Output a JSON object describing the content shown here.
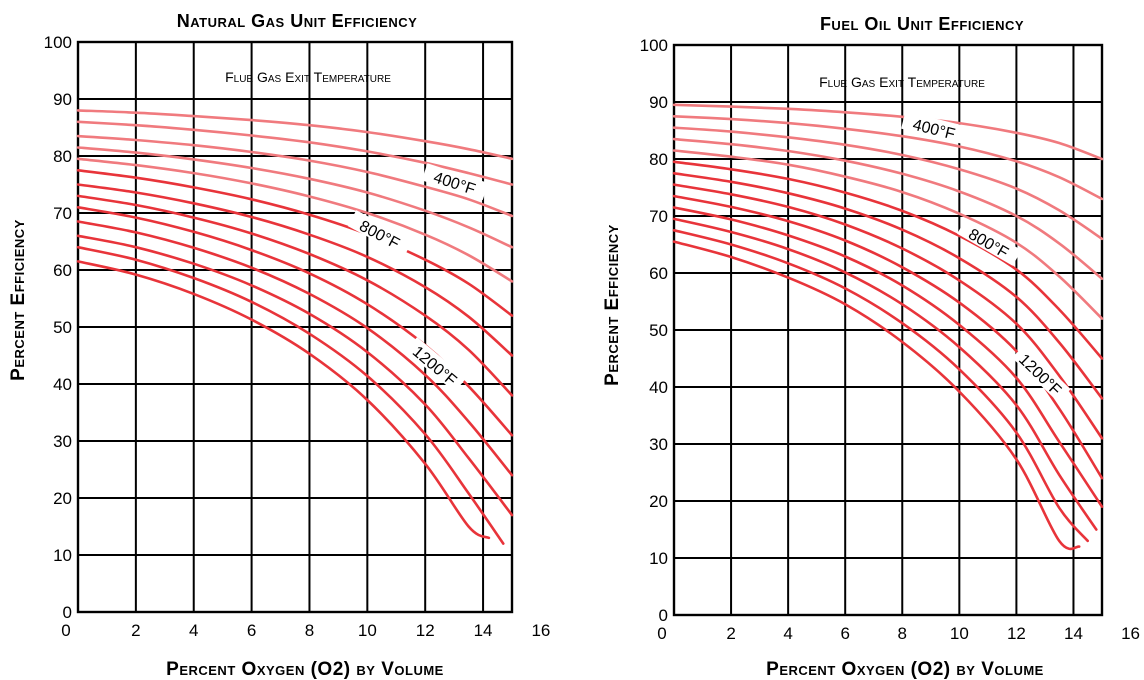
{
  "chart_data": [
    {
      "type": "line",
      "title": "Natural Gas Unit Efficiency",
      "subtitle": "Flue Gas Exit Temperature",
      "xlabel": "Percent Oxygen (O2) by Volume",
      "ylabel": "Percent Efficiency",
      "xlim": [
        0,
        15
      ],
      "ylim": [
        0,
        100
      ],
      "x_ticks": [
        0,
        2,
        4,
        6,
        8,
        10,
        12,
        14,
        16
      ],
      "y_ticks": [
        0,
        10,
        20,
        30,
        40,
        50,
        60,
        70,
        80,
        90,
        100
      ],
      "grid": true,
      "annotations": [
        {
          "text": "400°F",
          "x": 13,
          "y": 75
        },
        {
          "text": "800°F",
          "x": 10.4,
          "y": 66
        },
        {
          "text": "1200°F",
          "x": 12.3,
          "y": 43
        }
      ],
      "series": [
        {
          "x": [
            0,
            2,
            4,
            6,
            8,
            10,
            12,
            13.5,
            15
          ],
          "values": [
            88,
            87.6,
            87,
            86.3,
            85.4,
            84.2,
            82.6,
            81.2,
            79.5
          ]
        },
        {
          "x": [
            0,
            2,
            4,
            6,
            8,
            10,
            12,
            13.5,
            15
          ],
          "values": [
            86,
            85.4,
            84.6,
            83.6,
            82.4,
            80.8,
            78.8,
            77,
            75
          ]
        },
        {
          "x": [
            0,
            2,
            4,
            6,
            8,
            10,
            12,
            13.5,
            15
          ],
          "values": [
            83.5,
            82.8,
            81.9,
            80.7,
            79.2,
            77.2,
            74.6,
            72.4,
            69.5
          ]
        },
        {
          "x": [
            0,
            2,
            4,
            6,
            8,
            10,
            12,
            13.5,
            15
          ],
          "values": [
            81.5,
            80.6,
            79.4,
            77.9,
            76,
            73.6,
            70.4,
            67.5,
            64
          ]
        },
        {
          "x": [
            0,
            2,
            4,
            6,
            8,
            10,
            12,
            13.5,
            15
          ],
          "values": [
            79.5,
            78.4,
            77,
            75.2,
            72.9,
            70,
            66.2,
            62.6,
            58
          ]
        },
        {
          "x": [
            0,
            2,
            4,
            6,
            8,
            10,
            12,
            13.5,
            15
          ],
          "values": [
            77.5,
            76.2,
            74.5,
            72.4,
            69.7,
            66.3,
            61.8,
            57.6,
            52
          ]
        },
        {
          "x": [
            0,
            2,
            4,
            6,
            8,
            10,
            12,
            13.5,
            15
          ],
          "values": [
            75,
            73.6,
            71.7,
            69.3,
            66.2,
            62.3,
            57,
            51.8,
            45
          ]
        },
        {
          "x": [
            0,
            2,
            4,
            6,
            8,
            10,
            12,
            13.5,
            15
          ],
          "values": [
            73,
            71.4,
            69.2,
            66.4,
            62.8,
            58.2,
            52,
            46,
            38
          ]
        },
        {
          "x": [
            0,
            2,
            4,
            6,
            8,
            10,
            12,
            13.5,
            15
          ],
          "values": [
            71,
            69.2,
            66.7,
            63.5,
            59.4,
            54,
            46.8,
            39.6,
            31
          ]
        },
        {
          "x": [
            0,
            2,
            4,
            6,
            8,
            10,
            12,
            13.5,
            15
          ],
          "values": [
            68.5,
            66.6,
            63.9,
            60.4,
            55.8,
            49.8,
            41.6,
            33.4,
            24
          ]
        },
        {
          "x": [
            0,
            2,
            4,
            6,
            8,
            10,
            12,
            13.5,
            15
          ],
          "values": [
            66,
            64,
            61.1,
            57.3,
            52.3,
            45.6,
            36.4,
            27,
            17
          ]
        },
        {
          "x": [
            0,
            2,
            4,
            6,
            8,
            10,
            12,
            13.5,
            14.7
          ],
          "values": [
            64,
            61.8,
            58.6,
            54.4,
            48.8,
            41.4,
            31.2,
            20.8,
            12
          ]
        },
        {
          "x": [
            0,
            2,
            4,
            6,
            8,
            10,
            12,
            13.5,
            14.2
          ],
          "values": [
            61.5,
            59.2,
            55.8,
            51.3,
            45.3,
            37.2,
            26,
            15,
            13
          ]
        }
      ]
    },
    {
      "type": "line",
      "title": "Fuel Oil Unit Efficiency",
      "subtitle": "Flue Gas Exit Temperature",
      "xlabel": "Percent Oxygen (O2) by Volume",
      "ylabel": "Percent Efficiency",
      "xlim": [
        0,
        15
      ],
      "ylim": [
        0,
        100
      ],
      "x_ticks": [
        0,
        2,
        4,
        6,
        8,
        10,
        12,
        14,
        16
      ],
      "y_ticks": [
        0,
        10,
        20,
        30,
        40,
        50,
        60,
        70,
        80,
        90,
        100
      ],
      "grid": true,
      "annotations": [
        {
          "text": "400°F",
          "x": 9.1,
          "y": 85
        },
        {
          "text": "800°F",
          "x": 11,
          "y": 65
        },
        {
          "text": "1200°F",
          "x": 12.8,
          "y": 42
        }
      ],
      "series": [
        {
          "x": [
            0,
            2,
            4,
            6,
            8,
            10,
            12,
            13.5,
            15
          ],
          "values": [
            89.5,
            89.2,
            88.8,
            88.2,
            87.4,
            86.3,
            84.6,
            82.8,
            80
          ]
        },
        {
          "x": [
            0,
            2,
            4,
            6,
            8,
            10,
            12,
            13.5,
            15
          ],
          "values": [
            87.5,
            87,
            86.3,
            85.3,
            84,
            82.2,
            79.6,
            76.8,
            73
          ]
        },
        {
          "x": [
            0,
            2,
            4,
            6,
            8,
            10,
            12,
            13.5,
            15
          ],
          "values": [
            85.5,
            84.8,
            83.8,
            82.5,
            80.7,
            78.2,
            74.8,
            71,
            66
          ]
        },
        {
          "x": [
            0,
            2,
            4,
            6,
            8,
            10,
            12,
            13.5,
            15
          ],
          "values": [
            83.5,
            82.6,
            81.4,
            79.7,
            77.4,
            74.3,
            70,
            65.2,
            59
          ]
        },
        {
          "x": [
            0,
            2,
            4,
            6,
            8,
            10,
            12,
            13.5,
            15
          ],
          "values": [
            81.5,
            80.4,
            79,
            76.9,
            74.2,
            70.4,
            65.3,
            59.4,
            52
          ]
        },
        {
          "x": [
            0,
            2,
            4,
            6,
            8,
            10,
            12,
            13.5,
            15
          ],
          "values": [
            79.5,
            78.2,
            76.5,
            74.1,
            70.9,
            66.5,
            60.6,
            53.6,
            45
          ]
        },
        {
          "x": [
            0,
            2,
            4,
            6,
            8,
            10,
            12,
            13.5,
            15
          ],
          "values": [
            77.5,
            76,
            74,
            71.3,
            67.6,
            62.6,
            55.8,
            47.8,
            38
          ]
        },
        {
          "x": [
            0,
            2,
            4,
            6,
            8,
            10,
            12,
            13.5,
            15
          ],
          "values": [
            75.5,
            73.8,
            71.6,
            68.5,
            64.3,
            58.7,
            51.1,
            42,
            31
          ]
        },
        {
          "x": [
            0,
            2,
            4,
            6,
            8,
            10,
            12,
            13.5,
            15
          ],
          "values": [
            73.5,
            71.6,
            69.1,
            65.7,
            61,
            54.8,
            46.3,
            36.2,
            24
          ]
        },
        {
          "x": [
            0,
            2,
            4,
            6,
            8,
            10,
            12,
            13.5,
            15
          ],
          "values": [
            71.5,
            69.4,
            66.6,
            62.9,
            57.8,
            50.9,
            41.6,
            30.4,
            19
          ]
        },
        {
          "x": [
            0,
            2,
            4,
            6,
            8,
            10,
            12,
            13.5,
            14.8
          ],
          "values": [
            69.5,
            67.2,
            64.2,
            60.1,
            54.5,
            47,
            36.8,
            24.6,
            15
          ]
        },
        {
          "x": [
            0,
            2,
            4,
            6,
            8,
            10,
            12,
            13.5,
            14.5
          ],
          "values": [
            67.5,
            65,
            61.7,
            57.3,
            51.2,
            43.1,
            32,
            18.8,
            13
          ]
        },
        {
          "x": [
            0,
            2,
            4,
            6,
            8,
            10,
            12,
            13.5,
            14.2
          ],
          "values": [
            65.5,
            62.8,
            59.2,
            54.5,
            47.9,
            39.2,
            27.3,
            13,
            12
          ]
        }
      ]
    }
  ]
}
